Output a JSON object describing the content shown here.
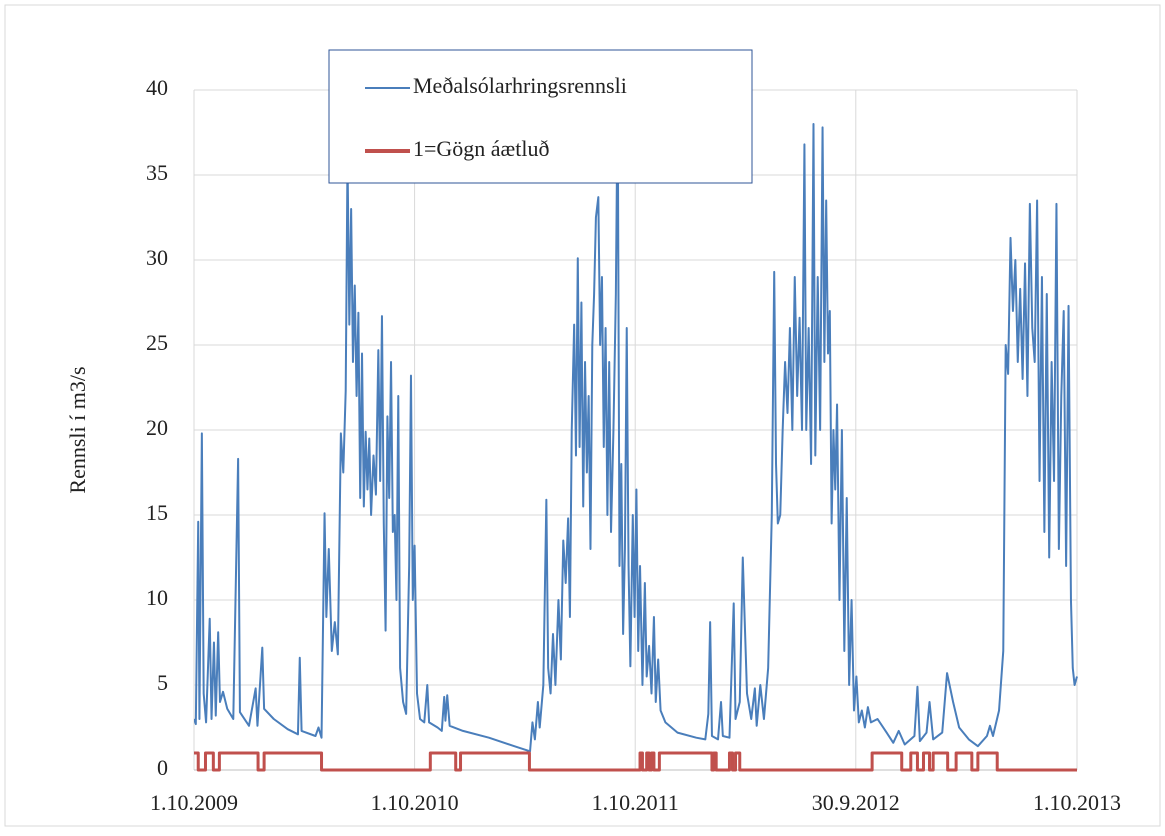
{
  "chart_data": {
    "type": "line",
    "ylabel": "Rennsli í m3/s",
    "xlim": [
      "1.10.2009",
      "1.10.2013"
    ],
    "xticks": [
      "1.10.2009",
      "1.10.2010",
      "1.10.2011",
      "30.9.2012",
      "1.10.2013"
    ],
    "ylim": [
      0,
      40
    ],
    "yticks": [
      0,
      5,
      10,
      15,
      20,
      25,
      30,
      35,
      40
    ],
    "grid": true,
    "legend": "top",
    "series": [
      {
        "name": "Meðalsólarhringsrennsli",
        "color": "#4a7ebb",
        "step": false,
        "x": [
          "1.10.2009",
          "4.10.2009",
          "8.10.2009",
          "10.10.2009",
          "14.10.2009",
          "17.10.2009",
          "21.10.2009",
          "27.10.2009",
          "30.10.2009",
          "3.11.2009",
          "6.11.2009",
          "10.11.2009",
          "13.11.2009",
          "18.11.2009",
          "25.11.2009",
          "5.12.2009",
          "13.12.2009",
          "16.12.2009",
          "31.12.2009",
          "11.1.2010",
          "14.1.2010",
          "22.1.2010",
          "25.1.2010",
          "10.2.2010",
          "5.3.2010",
          "22.3.2010",
          "25.3.2010",
          "28.3.2010",
          "20.4.2010",
          "25.4.2010",
          "30.4.2010",
          "5.5.2010",
          "8.5.2010",
          "12.5.2010",
          "17.5.2010",
          "22.5.2010",
          "27.5.2010",
          "1.6.2010",
          "5.6.2010",
          "9.6.2010",
          "12.6.2010",
          "15.6.2010",
          "18.6.2010",
          "21.6.2010",
          "24.6.2010",
          "27.6.2010",
          "30.6.2010",
          "3.7.2010",
          "6.7.2010",
          "9.7.2010",
          "12.7.2010",
          "15.7.2010",
          "18.7.2010",
          "21.7.2010",
          "25.7.2010",
          "29.7.2010",
          "2.8.2010",
          "5.8.2010",
          "8.8.2010",
          "11.8.2010",
          "14.8.2010",
          "17.8.2010",
          "20.8.2010",
          "23.8.2010",
          "26.8.2010",
          "29.8.2010",
          "1.9.2010",
          "4.9.2010",
          "7.9.2010",
          "12.9.2010",
          "17.9.2010",
          "22.9.2010",
          "25.9.2010",
          "28.9.2010",
          "1.10.2010",
          "5.10.2010",
          "10.10.2010",
          "17.10.2010",
          "22.10.2010",
          "25.10.2010",
          "8.11.2010",
          "15.11.2010",
          "19.11.2010",
          "21.11.2010",
          "24.11.2010",
          "28.11.2010",
          "20.12.2010",
          "1.2.2011",
          "15.3.2011",
          "10.4.2011",
          "14.4.2011",
          "18.4.2011",
          "23.4.2011",
          "26.4.2011",
          "2.5.2011",
          "7.5.2011",
          "10.5.2011",
          "14.5.2011",
          "18.5.2011",
          "22.5.2011",
          "27.5.2011",
          "31.5.2011",
          "4.6.2011",
          "8.6.2011",
          "12.6.2011",
          "15.6.2011",
          "18.6.2011",
          "22.6.2011",
          "25.6.2011",
          "28.6.2011",
          "1.7.2011",
          "4.7.2011",
          "7.7.2011",
          "10.7.2011",
          "13.7.2011",
          "16.7.2011",
          "19.7.2011",
          "22.7.2011",
          "25.7.2011",
          "28.7.2011",
          "1.8.2011",
          "4.8.2011",
          "7.8.2011",
          "10.8.2011",
          "13.8.2011",
          "16.8.2011",
          "19.8.2011",
          "22.8.2011",
          "26.8.2011",
          "30.8.2011",
          "2.9.2011",
          "5.9.2011",
          "8.9.2011",
          "11.9.2011",
          "14.9.2011",
          "17.9.2011",
          "20.9.2011",
          "23.9.2011",
          "27.9.2011",
          "30.9.2011",
          "3.10.2011",
          "6.10.2011",
          "9.10.2011",
          "13.10.2011",
          "17.10.2011",
          "20.10.2011",
          "24.10.2011",
          "28.10.2011",
          "1.11.2011",
          "4.11.2011",
          "8.11.2011",
          "12.11.2011",
          "20.11.2011",
          "10.12.2011",
          "10.1.2012",
          "25.1.2012",
          "30.1.2012",
          "2.2.2012",
          "5.2.2012",
          "15.2.2012",
          "20.2.2012",
          "23.2.2012",
          "5.3.2012",
          "12.3.2012",
          "15.3.2012",
          "22.3.2012",
          "27.3.2012",
          "30.3.2012",
          "3.4.2012",
          "10.4.2012",
          "16.4.2012",
          "19.4.2012",
          "25.4.2012",
          "1.5.2012",
          "8.5.2012",
          "14.5.2012",
          "18.5.2012",
          "21.5.2012",
          "24.5.2012",
          "28.5.2012",
          "1.6.2012",
          "5.6.2012",
          "9.6.2012",
          "13.6.2012",
          "17.6.2012",
          "21.6.2012",
          "25.6.2012",
          "29.6.2012",
          "3.7.2012",
          "7.7.2012",
          "10.7.2012",
          "14.7.2012",
          "18.7.2012",
          "22.7.2012",
          "25.7.2012",
          "29.7.2012",
          "2.8.2012",
          "6.8.2012",
          "9.8.2012",
          "12.8.2012",
          "15.8.2012",
          "18.8.2012",
          "21.8.2012",
          "24.8.2012",
          "27.8.2012",
          "30.8.2012",
          "3.9.2012",
          "7.9.2012",
          "11.9.2012",
          "15.9.2012",
          "19.9.2012",
          "23.9.2012",
          "27.9.2012",
          "1.10.2012",
          "5.10.2012",
          "10.10.2012",
          "15.10.2012",
          "20.10.2012",
          "25.10.2012",
          "5.11.2012",
          "20.11.2012",
          "1.12.2012",
          "10.12.2012",
          "20.12.2012",
          "5.1.2013",
          "10.1.2013",
          "14.1.2013",
          "25.1.2013",
          "30.1.2013",
          "5.2.2013",
          "20.2.2013",
          "28.2.2013",
          "10.3.2013",
          "20.3.2013",
          "5.4.2013",
          "20.4.2013",
          "5.5.2013",
          "10.5.2013",
          "15.5.2013",
          "25.5.2013",
          "1.6.2013",
          "5.6.2013",
          "9.6.2013",
          "13.6.2013",
          "17.6.2013",
          "21.6.2013",
          "25.6.2013",
          "29.6.2013",
          "3.7.2013",
          "7.7.2013",
          "11.7.2013",
          "15.7.2013",
          "19.7.2013",
          "23.7.2013",
          "27.7.2013",
          "31.7.2013",
          "4.8.2013",
          "8.8.2013",
          "12.8.2013",
          "16.8.2013",
          "20.8.2013",
          "24.8.2013",
          "28.8.2013",
          "1.9.2013",
          "5.9.2013",
          "9.9.2013",
          "13.9.2013",
          "17.9.2013",
          "21.9.2013",
          "24.9.2013",
          "27.9.2013",
          "1.10.2013"
        ],
        "values": [
          3.0,
          2.7,
          14.6,
          3.0,
          19.8,
          4.5,
          2.8,
          8.9,
          3.0,
          7.5,
          3.2,
          8.1,
          4.0,
          4.6,
          3.6,
          3.0,
          18.3,
          3.4,
          2.6,
          4.8,
          2.6,
          7.2,
          3.6,
          3.0,
          2.4,
          2.1,
          6.6,
          2.3,
          2.0,
          2.5,
          1.9,
          15.1,
          9.0,
          13.0,
          7.0,
          8.7,
          6.8,
          19.8,
          17.5,
          22.3,
          36.0,
          26.2,
          33.0,
          24.0,
          28.5,
          22.0,
          26.9,
          16.0,
          24.5,
          15.5,
          19.9,
          16.5,
          19.5,
          15.0,
          18.5,
          16.2,
          24.7,
          17.0,
          26.7,
          14.5,
          8.2,
          20.8,
          16.0,
          24.0,
          14.0,
          15.0,
          10.0,
          22.0,
          6.0,
          4.0,
          3.3,
          12.0,
          23.2,
          10.0,
          13.2,
          4.5,
          3.0,
          2.8,
          5.0,
          2.8,
          2.5,
          2.3,
          4.3,
          2.9,
          4.4,
          2.6,
          2.3,
          1.9,
          1.4,
          1.1,
          2.8,
          1.8,
          4.0,
          2.5,
          5.0,
          15.9,
          6.0,
          4.5,
          8.0,
          5.0,
          10.0,
          6.5,
          13.5,
          11.0,
          14.8,
          9.0,
          20.0,
          26.2,
          18.5,
          30.1,
          19.0,
          27.5,
          15.5,
          24.0,
          17.5,
          22.0,
          13.0,
          25.0,
          28.0,
          32.5,
          33.7,
          25.0,
          29.0,
          19.0,
          26.0,
          15.0,
          24.0,
          14.0,
          20.0,
          28.0,
          40.0,
          12.0,
          18.0,
          8.0,
          13.0,
          26.0,
          12.0,
          6.1,
          15.0,
          9.0,
          16.5,
          7.0,
          12.0,
          5.0,
          11.0,
          5.5,
          7.3,
          4.5,
          9.0,
          4.0,
          6.5,
          3.5,
          2.8,
          2.2,
          1.9,
          1.8,
          3.3,
          8.7,
          2.0,
          1.8,
          4.0,
          2.0,
          1.9,
          9.8,
          3.0,
          4.0,
          12.5,
          9.0,
          4.5,
          3.0,
          4.8,
          2.6,
          5.0,
          3.0,
          6.0,
          15.0,
          29.3,
          18.0,
          14.5,
          15.0,
          20.0,
          24.0,
          21.0,
          26.0,
          20.0,
          29.0,
          22.0,
          26.6,
          20.0,
          36.8,
          20.0,
          26.0,
          18.0,
          38.0,
          18.5,
          29.0,
          20.0,
          37.8,
          24.0,
          33.5,
          24.5,
          27.0,
          14.5,
          20.0,
          16.5,
          21.5,
          10.0,
          20.0,
          7.0,
          16.0,
          5.0,
          10.0,
          3.5,
          5.5,
          2.8,
          3.5,
          2.5,
          3.7,
          2.8,
          3.0,
          2.2,
          1.6,
          2.3,
          1.5,
          2.0,
          4.9,
          1.7,
          2.2,
          4.0,
          1.8,
          2.2,
          5.7,
          4.0,
          2.5,
          1.8,
          1.4,
          2.0,
          2.6,
          2.0,
          3.5,
          7.0,
          25.0,
          23.3,
          31.3,
          27.0,
          30.0,
          24.0,
          28.3,
          23.0,
          29.8,
          22.0,
          33.3,
          26.0,
          24.0,
          33.5,
          17.0,
          29.0,
          14.0,
          28.0,
          12.5,
          24.0,
          17.0,
          33.3,
          13.0,
          22.0,
          27.0,
          12.0,
          27.3,
          10.0,
          6.0,
          5.0,
          5.5
        ]
      },
      {
        "name": "1=Gögn áætluð",
        "color": "#c0504d",
        "step": true,
        "x": [
          "1.10.2009",
          "8.10.2009",
          "20.10.2009",
          "2.11.2009",
          "12.11.2009",
          "15.1.2010",
          "25.1.2010",
          "30.4.2010",
          "27.10.2010",
          "8.12.2010",
          "16.12.2010",
          "9.4.2011",
          "9.10.2011",
          "13.10.2011",
          "20.10.2011",
          "24.10.2011",
          "28.10.2011",
          "1.11.2011",
          "10.11.2011",
          "5.2.2012",
          "8.2.2012",
          "12.2.2012",
          "5.3.2012",
          "10.3.2012",
          "15.3.2012",
          "22.3.2012",
          "27.10.2012",
          "15.12.2012",
          "30.12.2012",
          "10.1.2013",
          "20.1.2013",
          "30.1.2013",
          "5.2.2013",
          "1.3.2013",
          "15.3.2013",
          "10.4.2013",
          "20.4.2013",
          "22.5.2013",
          "1.10.2013"
        ],
        "values": [
          1,
          0,
          1,
          0,
          1,
          0,
          1,
          0,
          1,
          0,
          1,
          0,
          1,
          0,
          1,
          0,
          1,
          0,
          1,
          0,
          1,
          0,
          1,
          0,
          1,
          0,
          1,
          0,
          1,
          0,
          1,
          0,
          1,
          0,
          1,
          0,
          1,
          0,
          0
        ]
      }
    ]
  }
}
